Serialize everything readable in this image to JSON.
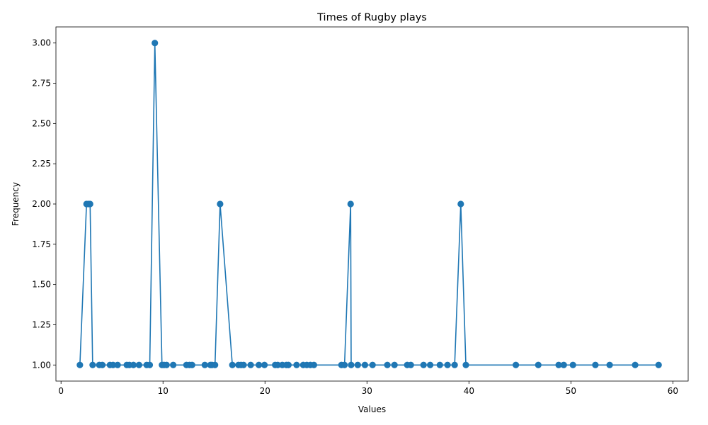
{
  "chart_data": {
    "type": "line",
    "title": "Times of Rugby plays",
    "xlabel": "Values",
    "ylabel": "Frequency",
    "xlim": [
      -0.5,
      61.5
    ],
    "ylim": [
      0.9,
      3.1
    ],
    "xticks": [
      0,
      10,
      20,
      30,
      40,
      50,
      60
    ],
    "yticks": [
      1.0,
      1.25,
      1.5,
      1.75,
      2.0,
      2.25,
      2.5,
      2.75,
      3.0
    ],
    "ytick_format": "0.00",
    "color": "#1f77b4",
    "grid": false,
    "legend": "none",
    "series": [
      {
        "x": [
          1.85,
          2.5,
          2.7,
          2.85,
          3.1,
          3.75,
          4.05,
          4.8,
          5.1,
          5.55,
          6.45,
          6.7,
          7.1,
          7.65,
          8.4,
          8.7,
          9.2,
          9.9,
          10.1,
          10.35,
          11.0,
          12.3,
          12.6,
          12.85,
          14.1,
          14.65,
          14.8,
          15.1,
          15.6,
          16.8,
          17.4,
          17.65,
          17.9,
          18.6,
          19.4,
          19.95,
          21.0,
          21.25,
          21.7,
          22.1,
          22.3,
          23.1,
          23.75,
          24.1,
          24.45,
          24.8,
          27.5,
          27.8,
          28.4,
          28.45,
          29.1,
          29.8,
          30.55,
          32.0,
          32.7,
          33.95,
          34.3,
          35.55,
          36.2,
          37.15,
          37.9,
          38.6,
          39.2,
          39.7,
          44.6,
          46.8,
          48.8,
          49.3,
          50.2,
          52.4,
          53.8,
          56.3,
          58.6
        ],
        "y": [
          1,
          2,
          2,
          2,
          1,
          1,
          1,
          1,
          1,
          1,
          1,
          1,
          1,
          1,
          1,
          1,
          3,
          1,
          1,
          1,
          1,
          1,
          1,
          1,
          1,
          1,
          1,
          1,
          2,
          1,
          1,
          1,
          1,
          1,
          1,
          1,
          1,
          1,
          1,
          1,
          1,
          1,
          1,
          1,
          1,
          1,
          1,
          1,
          2,
          1,
          1,
          1,
          1,
          1,
          1,
          1,
          1,
          1,
          1,
          1,
          1,
          1,
          2,
          1,
          1,
          1,
          1,
          1,
          1,
          1,
          1,
          1,
          1
        ]
      }
    ]
  }
}
